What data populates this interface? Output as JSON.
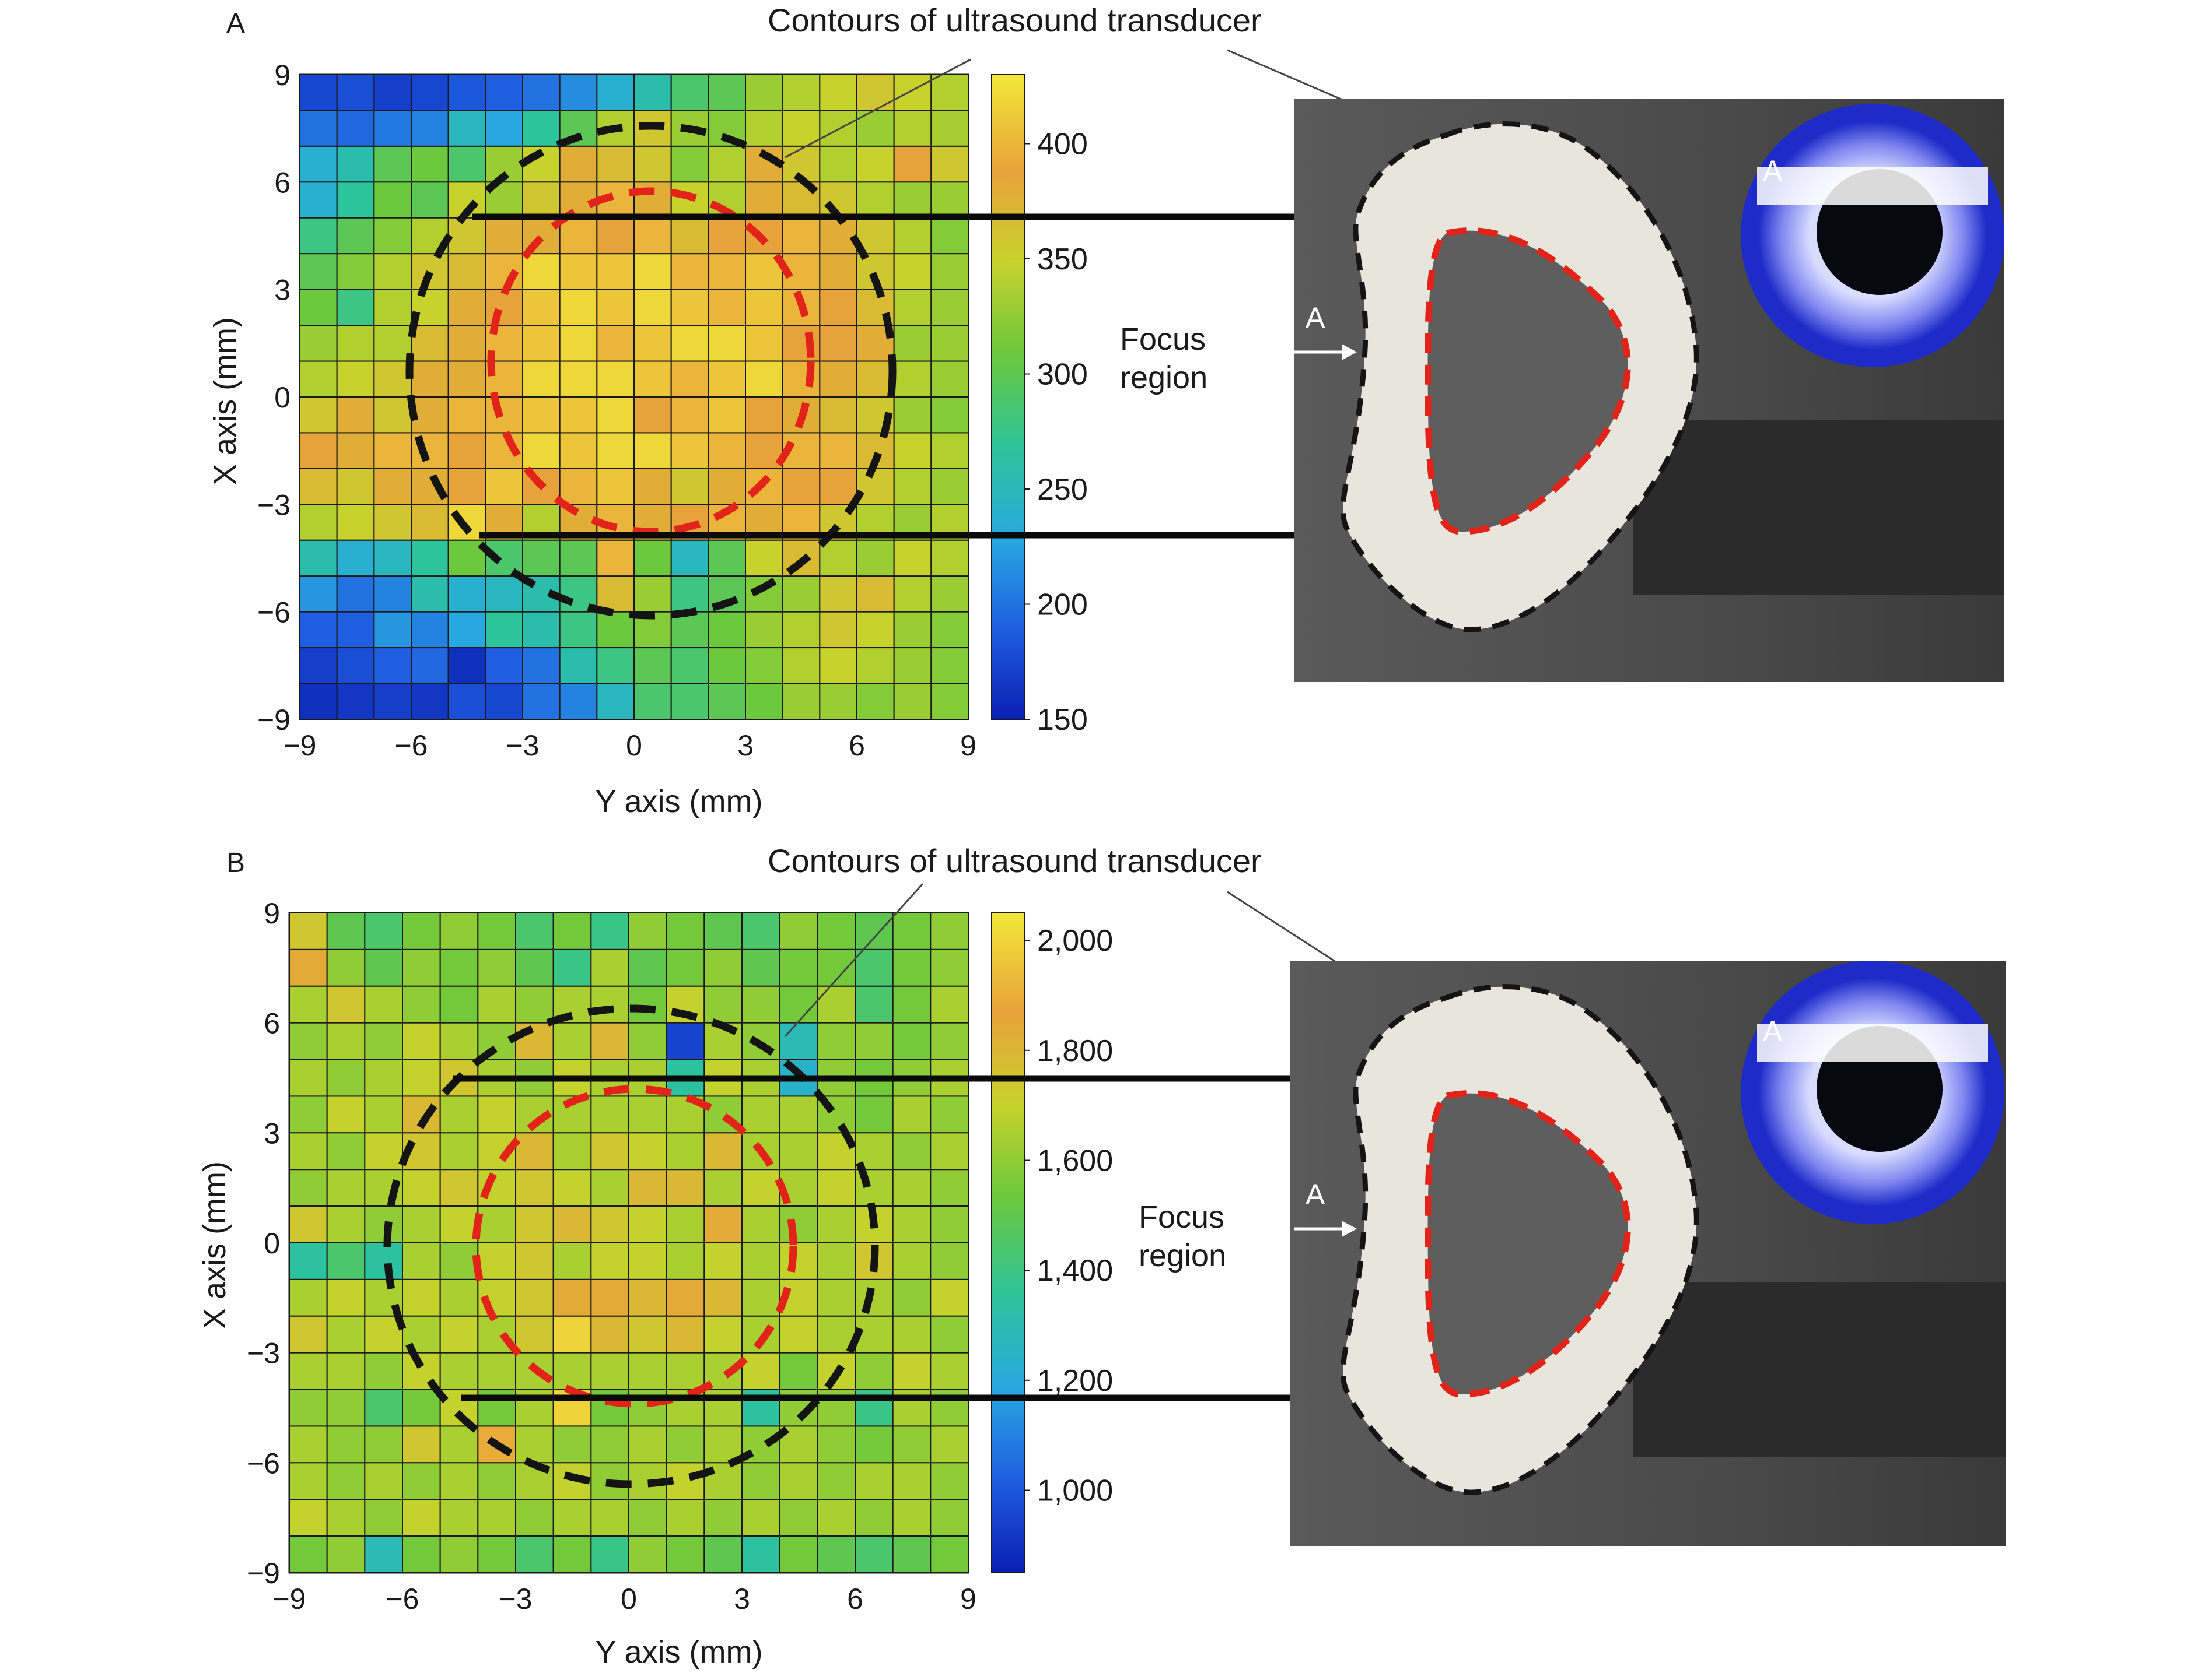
{
  "chart_data": [
    {
      "type": "heatmap",
      "panel_label": "A",
      "xlabel": "Y axis (mm)",
      "ylabel": "X axis (mm)",
      "xlim": [
        -9,
        9
      ],
      "ylim": [
        -9,
        9
      ],
      "x_ticks": [
        "−9",
        "−6",
        "−3",
        "0",
        "3",
        "6",
        "9"
      ],
      "y_ticks": [
        "9",
        "6",
        "3",
        "0",
        "−3",
        "−6",
        "−9"
      ],
      "colorbar": {
        "range": [
          150,
          430
        ],
        "tick_values": [
          150,
          200,
          250,
          300,
          350,
          400
        ],
        "tick_labels": [
          "150",
          "200",
          "250",
          "300",
          "350",
          "400"
        ]
      },
      "colors": [
        "#0a1fb4",
        "#1f5ee0",
        "#28a8e0",
        "#2cc49a",
        "#6cc83c",
        "#c8d22c",
        "#e8a23a",
        "#f2e838"
      ],
      "callout": "Contours of ultrasound transducer",
      "focus_label": [
        "Focus",
        "region"
      ],
      "marker_labels": [
        "A",
        "A"
      ],
      "grid": [
        [
          175,
          180,
          170,
          175,
          185,
          190,
          200,
          215,
          240,
          260,
          290,
          300,
          330,
          340,
          350,
          360,
          350,
          340
        ],
        [
          200,
          195,
          205,
          210,
          250,
          230,
          270,
          300,
          340,
          360,
          330,
          320,
          340,
          350,
          340,
          330,
          340,
          335
        ],
        [
          240,
          260,
          300,
          310,
          290,
          330,
          350,
          380,
          370,
          360,
          320,
          340,
          380,
          360,
          340,
          350,
          390,
          360
        ],
        [
          240,
          270,
          310,
          300,
          350,
          330,
          360,
          380,
          400,
          380,
          350,
          340,
          380,
          370,
          360,
          340,
          330,
          330
        ],
        [
          280,
          300,
          320,
          340,
          360,
          380,
          380,
          400,
          390,
          400,
          370,
          390,
          390,
          400,
          380,
          360,
          340,
          320
        ],
        [
          300,
          320,
          340,
          360,
          370,
          400,
          420,
          410,
          410,
          420,
          400,
          400,
          410,
          400,
          380,
          360,
          350,
          330
        ],
        [
          310,
          280,
          340,
          350,
          380,
          390,
          410,
          420,
          410,
          420,
          410,
          400,
          410,
          400,
          390,
          370,
          340,
          330
        ],
        [
          330,
          340,
          340,
          370,
          380,
          400,
          410,
          420,
          400,
          410,
          420,
          420,
          410,
          390,
          390,
          380,
          330,
          330
        ],
        [
          340,
          350,
          360,
          380,
          380,
          400,
          420,
          420,
          420,
          410,
          400,
          410,
          420,
          400,
          380,
          370,
          340,
          330
        ],
        [
          360,
          380,
          360,
          380,
          400,
          400,
          410,
          410,
          420,
          390,
          400,
          410,
          390,
          380,
          370,
          360,
          330,
          320
        ],
        [
          390,
          380,
          400,
          400,
          390,
          400,
          420,
          410,
          420,
          420,
          410,
          400,
          390,
          400,
          400,
          370,
          350,
          340
        ],
        [
          370,
          360,
          380,
          380,
          390,
          410,
          390,
          400,
          410,
          380,
          360,
          380,
          400,
          390,
          390,
          360,
          340,
          330
        ],
        [
          340,
          350,
          360,
          370,
          420,
          380,
          340,
          380,
          400,
          380,
          390,
          400,
          380,
          400,
          360,
          340,
          330,
          340
        ],
        [
          260,
          240,
          250,
          270,
          310,
          290,
          300,
          300,
          400,
          310,
          250,
          300,
          350,
          370,
          340,
          330,
          350,
          340
        ],
        [
          220,
          200,
          210,
          260,
          240,
          250,
          260,
          280,
          370,
          330,
          280,
          300,
          320,
          330,
          360,
          370,
          340,
          330
        ],
        [
          190,
          190,
          220,
          210,
          230,
          270,
          260,
          280,
          310,
          320,
          300,
          310,
          330,
          340,
          360,
          350,
          330,
          320
        ],
        [
          170,
          180,
          190,
          195,
          160,
          190,
          200,
          260,
          280,
          300,
          290,
          310,
          320,
          340,
          350,
          340,
          330,
          320
        ],
        [
          160,
          165,
          170,
          165,
          180,
          175,
          200,
          210,
          250,
          290,
          290,
          300,
          310,
          330,
          330,
          320,
          330,
          320
        ]
      ]
    },
    {
      "type": "heatmap",
      "panel_label": "B",
      "xlabel": "Y axis (mm)",
      "ylabel": "X axis (mm)",
      "xlim": [
        -9,
        9
      ],
      "ylim": [
        -9,
        9
      ],
      "x_ticks": [
        "−9",
        "−6",
        "−3",
        "0",
        "3",
        "6",
        "9"
      ],
      "y_ticks": [
        "9",
        "6",
        "3",
        "0",
        "−3",
        "−6",
        "−9"
      ],
      "colorbar": {
        "range": [
          850,
          2050
        ],
        "tick_values": [
          1000,
          1200,
          1400,
          1600,
          1800,
          2000
        ],
        "tick_labels": [
          "1,000",
          "1,200",
          "1,400",
          "1,600",
          "1,800",
          "2,000"
        ]
      },
      "colors": [
        "#0a1fb4",
        "#1f5ee0",
        "#28a8e0",
        "#2cc49a",
        "#6cc83c",
        "#c8d22c",
        "#e8a23a",
        "#f2e838"
      ],
      "callout": "Contours of ultrasound transducer",
      "focus_label": [
        "Focus",
        "region"
      ],
      "marker_labels": [
        "A",
        "A"
      ],
      "grid": [
        [
          1750,
          1500,
          1450,
          1550,
          1600,
          1550,
          1450,
          1550,
          1400,
          1600,
          1550,
          1500,
          1450,
          1600,
          1550,
          1500,
          1550,
          1600
        ],
        [
          1850,
          1600,
          1500,
          1600,
          1550,
          1600,
          1500,
          1400,
          1650,
          1500,
          1550,
          1600,
          1500,
          1550,
          1550,
          1450,
          1550,
          1600
        ],
        [
          1650,
          1750,
          1650,
          1600,
          1550,
          1650,
          1600,
          1650,
          1650,
          1550,
          1700,
          1600,
          1600,
          1550,
          1650,
          1450,
          1550,
          1650
        ],
        [
          1600,
          1650,
          1600,
          1700,
          1650,
          1600,
          1800,
          1650,
          1800,
          1600,
          950,
          1650,
          1600,
          1300,
          1600,
          1600,
          1550,
          1600
        ],
        [
          1650,
          1600,
          1650,
          1700,
          1750,
          1650,
          1600,
          1700,
          1650,
          1650,
          1350,
          1700,
          1650,
          1250,
          1600,
          1550,
          1600,
          1650
        ],
        [
          1600,
          1700,
          1650,
          1800,
          1650,
          1700,
          1650,
          1650,
          1650,
          1650,
          1650,
          1600,
          1650,
          1650,
          1600,
          1550,
          1650,
          1600
        ],
        [
          1650,
          1600,
          1700,
          1750,
          1650,
          1700,
          1800,
          1650,
          1750,
          1700,
          1650,
          1800,
          1650,
          1650,
          1700,
          1650,
          1600,
          1650
        ],
        [
          1600,
          1650,
          1650,
          1700,
          1750,
          1700,
          1750,
          1700,
          1650,
          1800,
          1800,
          1650,
          1700,
          1650,
          1700,
          1650,
          1650,
          1600
        ],
        [
          1750,
          1650,
          1600,
          1650,
          1700,
          1650,
          1750,
          1800,
          1750,
          1700,
          1650,
          1850,
          1650,
          1600,
          1650,
          1700,
          1650,
          1600
        ],
        [
          1350,
          1450,
          1350,
          1650,
          1600,
          1700,
          1750,
          1650,
          1700,
          1700,
          1650,
          1700,
          1650,
          1700,
          1650,
          1750,
          1650,
          1600
        ],
        [
          1650,
          1700,
          1650,
          1700,
          1650,
          1700,
          1750,
          1850,
          1850,
          1800,
          1850,
          1800,
          1650,
          1700,
          1650,
          1650,
          1600,
          1700
        ],
        [
          1750,
          1650,
          1700,
          1650,
          1700,
          1650,
          1750,
          2000,
          1800,
          1750,
          1800,
          1700,
          1650,
          1700,
          1650,
          1650,
          1650,
          1600
        ],
        [
          1650,
          1650,
          1600,
          1700,
          1650,
          1650,
          1650,
          1650,
          1650,
          1650,
          1650,
          1650,
          1700,
          1550,
          1700,
          1600,
          1700,
          1650
        ],
        [
          1600,
          1600,
          1450,
          1550,
          1700,
          1550,
          1650,
          2000,
          1550,
          1600,
          1650,
          1650,
          1350,
          1600,
          1600,
          1400,
          1650,
          1600
        ],
        [
          1650,
          1600,
          1600,
          1750,
          1650,
          1900,
          1650,
          1600,
          1600,
          1650,
          1600,
          1650,
          1600,
          1650,
          1600,
          1550,
          1600,
          1650
        ],
        [
          1650,
          1600,
          1650,
          1600,
          1650,
          1600,
          1650,
          1700,
          1600,
          1650,
          1700,
          1650,
          1600,
          1650,
          1600,
          1650,
          1650,
          1600
        ],
        [
          1700,
          1650,
          1600,
          1700,
          1650,
          1650,
          1600,
          1650,
          1650,
          1600,
          1650,
          1600,
          1650,
          1600,
          1650,
          1600,
          1650,
          1600
        ],
        [
          1550,
          1600,
          1300,
          1550,
          1600,
          1550,
          1450,
          1550,
          1400,
          1600,
          1550,
          1500,
          1350,
          1550,
          1500,
          1450,
          1500,
          1550
        ]
      ]
    }
  ]
}
